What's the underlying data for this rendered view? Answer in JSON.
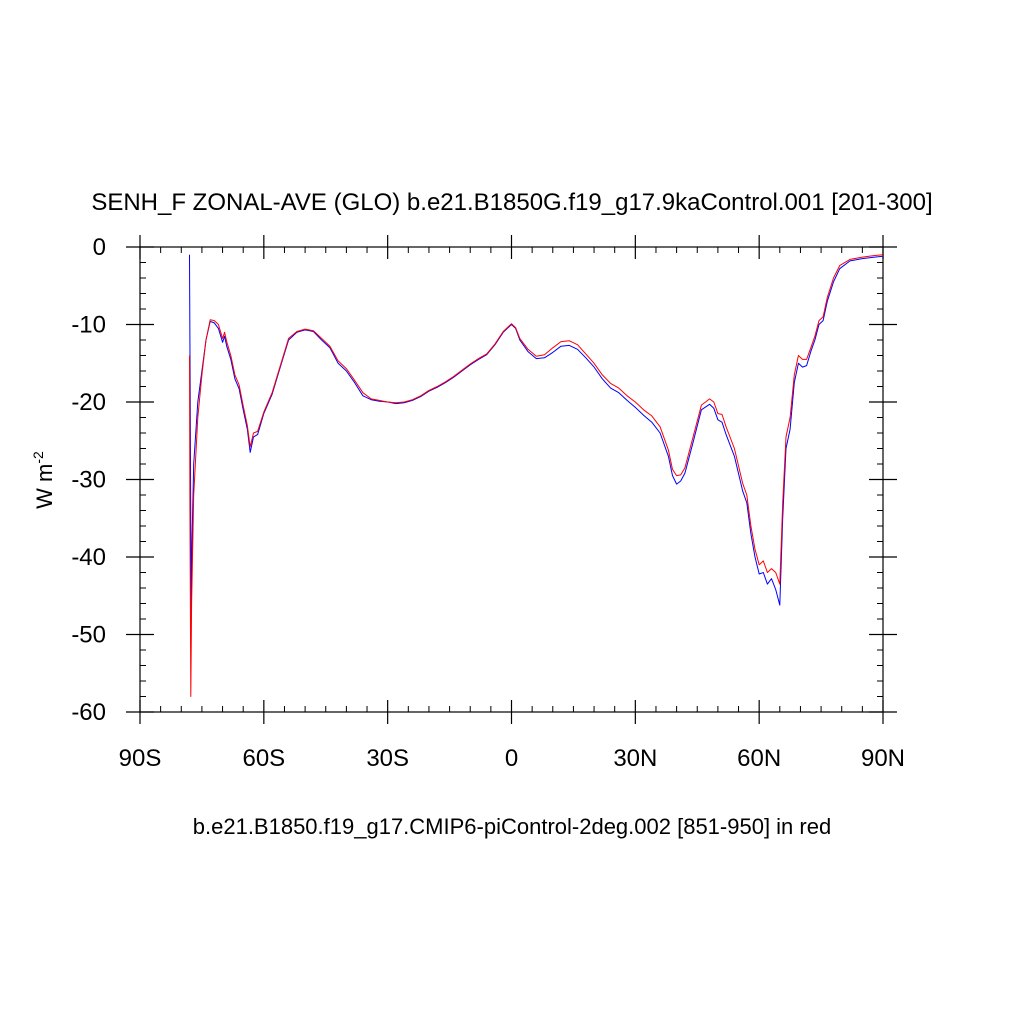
{
  "chart_data": {
    "type": "line",
    "title": "SENH_F ZONAL-AVE (GLO) b.e21.B1850G.f19_g17.9kaControl.001 [201-300]",
    "subtitle": "b.e21.B1850.f19_g17.CMIP6-piControl-2deg.002 [851-950] in red",
    "ylabel": "W m",
    "ylabel_exponent": "-2",
    "xlabel": "",
    "xlim": [
      -90,
      90
    ],
    "ylim": [
      -60,
      0
    ],
    "x_ticks": [
      -90,
      -60,
      -30,
      0,
      30,
      60,
      90
    ],
    "x_tick_labels": [
      "90S",
      "60S",
      "30S",
      "0",
      "30N",
      "60N",
      "90N"
    ],
    "y_ticks": [
      0,
      -10,
      -20,
      -30,
      -40,
      -50,
      -60
    ],
    "y_tick_labels": [
      "0",
      "-10",
      "-20",
      "-30",
      "-40",
      "-50",
      "-60"
    ],
    "grid": false,
    "legend": "none",
    "series": [
      {
        "color": "#0000ff",
        "points": [
          [
            -78.0,
            -1.0
          ],
          [
            -77.8,
            -25.0
          ],
          [
            -77.6,
            -48.0
          ],
          [
            -77.4,
            -38.0
          ],
          [
            -77.0,
            -28.0
          ],
          [
            -76.0,
            -20.0
          ],
          [
            -75.0,
            -16.0
          ],
          [
            -74.0,
            -12.0
          ],
          [
            -73.0,
            -9.6
          ],
          [
            -72.0,
            -9.8
          ],
          [
            -71.0,
            -10.5
          ],
          [
            -70.0,
            -12.3
          ],
          [
            -69.5,
            -11.5
          ],
          [
            -69.0,
            -12.8
          ],
          [
            -68.0,
            -14.5
          ],
          [
            -67.0,
            -17.0
          ],
          [
            -66.0,
            -18.3
          ],
          [
            -65.0,
            -21.0
          ],
          [
            -64.0,
            -23.5
          ],
          [
            -63.3,
            -26.5
          ],
          [
            -62.5,
            -24.5
          ],
          [
            -61.5,
            -24.2
          ],
          [
            -60.0,
            -21.5
          ],
          [
            -58.0,
            -19.0
          ],
          [
            -56.0,
            -15.5
          ],
          [
            -54.0,
            -12.0
          ],
          [
            -52.0,
            -11.0
          ],
          [
            -50.0,
            -10.7
          ],
          [
            -48.0,
            -10.9
          ],
          [
            -46.0,
            -12.0
          ],
          [
            -44.0,
            -13.0
          ],
          [
            -42.0,
            -15.0
          ],
          [
            -40.0,
            -16.0
          ],
          [
            -38.0,
            -17.5
          ],
          [
            -36.0,
            -19.2
          ],
          [
            -34.0,
            -19.7
          ],
          [
            -32.0,
            -19.9
          ],
          [
            -30.0,
            -20.0
          ],
          [
            -28.0,
            -20.2
          ],
          [
            -26.0,
            -20.1
          ],
          [
            -24.0,
            -19.8
          ],
          [
            -22.0,
            -19.3
          ],
          [
            -20.0,
            -18.6
          ],
          [
            -18.0,
            -18.1
          ],
          [
            -16.0,
            -17.5
          ],
          [
            -14.0,
            -16.8
          ],
          [
            -12.0,
            -16.0
          ],
          [
            -10.0,
            -15.2
          ],
          [
            -8.0,
            -14.5
          ],
          [
            -6.0,
            -13.9
          ],
          [
            -4.0,
            -12.6
          ],
          [
            -2.0,
            -11.0
          ],
          [
            0.0,
            -10.0
          ],
          [
            1.0,
            -10.5
          ],
          [
            2.0,
            -12.0
          ],
          [
            4.0,
            -13.5
          ],
          [
            6.0,
            -14.4
          ],
          [
            8.0,
            -14.3
          ],
          [
            10.0,
            -13.6
          ],
          [
            12.0,
            -12.8
          ],
          [
            14.0,
            -12.7
          ],
          [
            16.0,
            -13.2
          ],
          [
            18.0,
            -14.3
          ],
          [
            20.0,
            -15.5
          ],
          [
            22.0,
            -17.0
          ],
          [
            24.0,
            -18.2
          ],
          [
            26.0,
            -18.8
          ],
          [
            28.0,
            -19.8
          ],
          [
            30.0,
            -20.7
          ],
          [
            32.0,
            -21.7
          ],
          [
            34.0,
            -22.6
          ],
          [
            36.0,
            -24.0
          ],
          [
            38.0,
            -27.0
          ],
          [
            39.0,
            -29.5
          ],
          [
            40.0,
            -30.6
          ],
          [
            41.0,
            -30.2
          ],
          [
            42.0,
            -29.2
          ],
          [
            44.0,
            -25.2
          ],
          [
            46.0,
            -21.0
          ],
          [
            48.0,
            -20.3
          ],
          [
            49.0,
            -20.8
          ],
          [
            50.0,
            -22.3
          ],
          [
            51.0,
            -22.6
          ],
          [
            52.0,
            -24.2
          ],
          [
            54.0,
            -27.0
          ],
          [
            56.0,
            -31.5
          ],
          [
            57.0,
            -33.0
          ],
          [
            58.0,
            -37.0
          ],
          [
            59.0,
            -40.0
          ],
          [
            60.0,
            -42.2
          ],
          [
            61.0,
            -42.0
          ],
          [
            62.0,
            -43.5
          ],
          [
            63.0,
            -42.8
          ],
          [
            64.0,
            -44.2
          ],
          [
            65.0,
            -46.2
          ],
          [
            65.7,
            -35.0
          ],
          [
            66.5,
            -26.0
          ],
          [
            67.5,
            -23.5
          ],
          [
            68.5,
            -17.5
          ],
          [
            69.5,
            -15.0
          ],
          [
            70.5,
            -15.5
          ],
          [
            71.5,
            -15.3
          ],
          [
            72.5,
            -13.5
          ],
          [
            73.5,
            -12.0
          ],
          [
            74.5,
            -10.0
          ],
          [
            75.5,
            -9.5
          ],
          [
            76.5,
            -7.0
          ],
          [
            78.0,
            -4.5
          ],
          [
            79.5,
            -2.8
          ],
          [
            82.0,
            -1.8
          ],
          [
            85.0,
            -1.5
          ],
          [
            88.0,
            -1.3
          ],
          [
            90.0,
            -1.2
          ]
        ]
      },
      {
        "color": "#ff0000",
        "points": [
          [
            -78.0,
            -14.0
          ],
          [
            -77.9,
            -33.0
          ],
          [
            -77.7,
            -58.0
          ],
          [
            -77.5,
            -46.0
          ],
          [
            -77.0,
            -32.0
          ],
          [
            -76.0,
            -22.0
          ],
          [
            -75.0,
            -16.5
          ],
          [
            -74.0,
            -12.0
          ],
          [
            -73.0,
            -9.4
          ],
          [
            -72.0,
            -9.5
          ],
          [
            -71.0,
            -10.0
          ],
          [
            -70.0,
            -11.8
          ],
          [
            -69.5,
            -11.0
          ],
          [
            -69.0,
            -12.2
          ],
          [
            -68.0,
            -14.0
          ],
          [
            -67.0,
            -16.5
          ],
          [
            -66.0,
            -17.8
          ],
          [
            -65.0,
            -20.5
          ],
          [
            -64.0,
            -23.0
          ],
          [
            -63.3,
            -25.8
          ],
          [
            -62.5,
            -24.0
          ],
          [
            -61.5,
            -23.8
          ],
          [
            -60.0,
            -21.3
          ],
          [
            -58.0,
            -18.8
          ],
          [
            -56.0,
            -15.3
          ],
          [
            -54.0,
            -11.8
          ],
          [
            -52.0,
            -10.9
          ],
          [
            -50.0,
            -10.6
          ],
          [
            -48.0,
            -10.8
          ],
          [
            -46.0,
            -11.8
          ],
          [
            -44.0,
            -12.8
          ],
          [
            -42.0,
            -14.7
          ],
          [
            -40.0,
            -15.7
          ],
          [
            -38.0,
            -17.2
          ],
          [
            -36.0,
            -18.8
          ],
          [
            -34.0,
            -19.6
          ],
          [
            -32.0,
            -19.8
          ],
          [
            -30.0,
            -20.0
          ],
          [
            -28.0,
            -20.1
          ],
          [
            -26.0,
            -20.0
          ],
          [
            -24.0,
            -19.7
          ],
          [
            -22.0,
            -19.2
          ],
          [
            -20.0,
            -18.5
          ],
          [
            -18.0,
            -18.0
          ],
          [
            -16.0,
            -17.4
          ],
          [
            -14.0,
            -16.7
          ],
          [
            -12.0,
            -15.9
          ],
          [
            -10.0,
            -15.1
          ],
          [
            -8.0,
            -14.4
          ],
          [
            -6.0,
            -13.8
          ],
          [
            -4.0,
            -12.5
          ],
          [
            -2.0,
            -10.9
          ],
          [
            0.0,
            -9.9
          ],
          [
            1.0,
            -10.4
          ],
          [
            2.0,
            -11.8
          ],
          [
            4.0,
            -13.2
          ],
          [
            6.0,
            -14.1
          ],
          [
            8.0,
            -13.9
          ],
          [
            10.0,
            -13.0
          ],
          [
            12.0,
            -12.2
          ],
          [
            14.0,
            -12.1
          ],
          [
            16.0,
            -12.6
          ],
          [
            18.0,
            -13.8
          ],
          [
            20.0,
            -15.0
          ],
          [
            22.0,
            -16.5
          ],
          [
            24.0,
            -17.6
          ],
          [
            26.0,
            -18.2
          ],
          [
            28.0,
            -19.2
          ],
          [
            30.0,
            -20.0
          ],
          [
            32.0,
            -21.0
          ],
          [
            34.0,
            -21.8
          ],
          [
            36.0,
            -23.2
          ],
          [
            38.0,
            -26.2
          ],
          [
            39.0,
            -28.7
          ],
          [
            40.0,
            -29.5
          ],
          [
            41.0,
            -29.4
          ],
          [
            42.0,
            -28.5
          ],
          [
            44.0,
            -24.5
          ],
          [
            46.0,
            -20.4
          ],
          [
            48.0,
            -19.6
          ],
          [
            49.0,
            -20.0
          ],
          [
            50.0,
            -21.5
          ],
          [
            51.0,
            -21.6
          ],
          [
            52.0,
            -23.2
          ],
          [
            54.0,
            -26.0
          ],
          [
            56.0,
            -30.5
          ],
          [
            57.0,
            -32.0
          ],
          [
            58.0,
            -36.0
          ],
          [
            59.0,
            -39.0
          ],
          [
            60.0,
            -41.0
          ],
          [
            61.0,
            -40.5
          ],
          [
            62.0,
            -42.0
          ],
          [
            63.0,
            -41.5
          ],
          [
            64.0,
            -42.0
          ],
          [
            65.0,
            -43.5
          ],
          [
            65.7,
            -33.0
          ],
          [
            66.5,
            -24.5
          ],
          [
            67.5,
            -22.0
          ],
          [
            68.5,
            -16.5
          ],
          [
            69.5,
            -14.0
          ],
          [
            70.5,
            -14.5
          ],
          [
            71.5,
            -14.5
          ],
          [
            72.5,
            -13.0
          ],
          [
            73.5,
            -11.5
          ],
          [
            74.5,
            -9.5
          ],
          [
            75.5,
            -9.0
          ],
          [
            76.5,
            -6.5
          ],
          [
            78.0,
            -4.0
          ],
          [
            79.5,
            -2.4
          ],
          [
            82.0,
            -1.6
          ],
          [
            85.0,
            -1.3
          ],
          [
            88.0,
            -1.1
          ],
          [
            90.0,
            -1.0
          ]
        ]
      }
    ]
  }
}
